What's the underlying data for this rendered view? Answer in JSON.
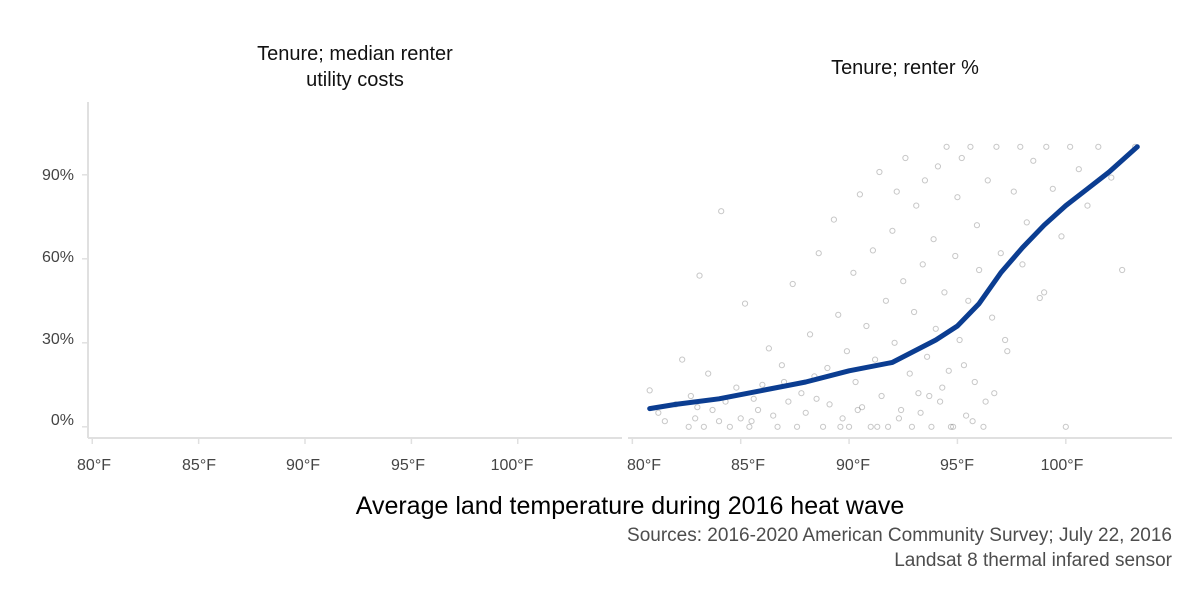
{
  "chart_data": {
    "type": "scatter",
    "xlabel": "Average land temperature during 2016 heat wave",
    "caption_lines": [
      "Sources: 2016-2020 American Community Survey; July 22, 2016",
      "Landsat 8 thermal infared sensor"
    ],
    "x_ticks": [
      80,
      85,
      90,
      95,
      100
    ],
    "x_tick_labels": [
      "80°F",
      "85°F",
      "90°F",
      "95°F",
      "100°F"
    ],
    "xlim": [
      79.8,
      104.9
    ],
    "y_ticks": [
      0,
      30,
      60,
      90
    ],
    "y_tick_labels": [
      "0%",
      "30%",
      "60%",
      "90%"
    ],
    "ylim": [
      -4,
      116
    ],
    "grid": false,
    "point_color": "#000000",
    "line_color": "#0b3d91",
    "panels": [
      {
        "title_lines": [
          "Tenure; median renter",
          "utility costs"
        ],
        "points_x": [],
        "points_y": [],
        "trend": {
          "x": [],
          "y": []
        }
      },
      {
        "title_lines": [
          "Tenure; renter %"
        ],
        "points_x": [
          80.8,
          81.2,
          81.5,
          82.0,
          82.3,
          82.6,
          82.7,
          82.9,
          83.1,
          83.3,
          83.5,
          83.7,
          84.0,
          84.1,
          84.3,
          84.5,
          84.8,
          85.0,
          85.2,
          85.4,
          85.6,
          85.8,
          86.0,
          86.3,
          86.5,
          86.7,
          86.9,
          87.2,
          87.4,
          87.6,
          87.8,
          88.0,
          88.2,
          88.4,
          88.6,
          88.8,
          89.0,
          89.1,
          89.3,
          89.5,
          89.7,
          89.9,
          90.0,
          90.2,
          90.3,
          90.5,
          90.6,
          90.8,
          91.0,
          91.1,
          91.2,
          91.4,
          91.5,
          91.7,
          91.8,
          92.0,
          92.1,
          92.2,
          92.4,
          92.5,
          92.6,
          92.8,
          92.9,
          93.0,
          93.1,
          93.2,
          93.4,
          93.5,
          93.6,
          93.8,
          93.9,
          94.0,
          94.1,
          94.2,
          94.4,
          94.5,
          94.6,
          94.8,
          94.9,
          95.0,
          95.1,
          95.2,
          95.4,
          95.5,
          95.6,
          95.8,
          95.9,
          96.0,
          96.2,
          96.4,
          96.6,
          96.8,
          97.0,
          97.3,
          97.6,
          97.9,
          98.2,
          98.5,
          98.8,
          99.1,
          99.4,
          99.8,
          100.2,
          100.6,
          101.0,
          101.5,
          102.1,
          102.6,
          103.2,
          83.0,
          85.5,
          88.5,
          91.3,
          93.3,
          94.3,
          95.3,
          96.3,
          97.2,
          99.0,
          89.6,
          92.3,
          94.7,
          96.7,
          98.0,
          100.0,
          87.0,
          90.4,
          93.7,
          95.7
        ],
        "points_y": [
          13,
          5,
          2,
          8,
          24,
          0,
          11,
          3,
          54,
          0,
          19,
          6,
          2,
          77,
          9,
          0,
          14,
          3,
          44,
          0,
          10,
          6,
          15,
          28,
          4,
          0,
          22,
          9,
          51,
          0,
          12,
          5,
          33,
          18,
          62,
          0,
          21,
          8,
          74,
          40,
          3,
          27,
          0,
          55,
          16,
          83,
          7,
          36,
          0,
          63,
          24,
          91,
          11,
          45,
          0,
          70,
          30,
          84,
          6,
          52,
          96,
          19,
          0,
          41,
          79,
          12,
          58,
          88,
          25,
          0,
          67,
          35,
          93,
          9,
          48,
          100,
          20,
          0,
          61,
          82,
          31,
          96,
          4,
          45,
          100,
          16,
          72,
          56,
          0,
          88,
          39,
          100,
          62,
          27,
          84,
          100,
          73,
          95,
          46,
          100,
          85,
          68,
          100,
          92,
          79,
          100,
          89,
          56,
          100,
          7,
          2,
          10,
          0,
          5,
          14,
          22,
          9,
          31,
          48,
          0,
          3,
          0,
          12,
          58,
          0,
          16,
          6,
          11,
          2
        ],
        "trend": {
          "x": [
            80.8,
            82,
            84,
            86,
            88,
            90,
            92,
            94,
            95,
            96,
            97,
            98,
            99,
            100,
            101,
            102,
            103.3
          ],
          "y": [
            6.5,
            8,
            10,
            13,
            16,
            20,
            23,
            31,
            36,
            44,
            55,
            64,
            72,
            79,
            85,
            91,
            100
          ]
        }
      }
    ]
  }
}
